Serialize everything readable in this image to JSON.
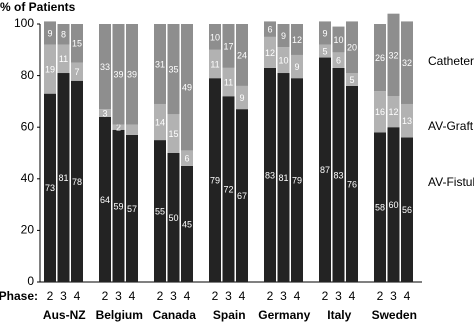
{
  "chart_data": {
    "type": "stacked-bar",
    "title": "% of Patients",
    "x_label": "Phase:",
    "groups": [
      "Aus-NZ",
      "Belgium",
      "Canada",
      "Spain",
      "Germany",
      "Italy",
      "Sweden"
    ],
    "categories": [
      "2",
      "3",
      "4",
      "2",
      "3",
      "4",
      "2",
      "3",
      "4",
      "2",
      "3",
      "4",
      "2",
      "3",
      "4",
      "2",
      "3",
      "4",
      "2",
      "3",
      "4"
    ],
    "series": [
      {
        "name": "AV-Fistula",
        "color": "#232323",
        "values": [
          73,
          81,
          78,
          64,
          59,
          57,
          55,
          50,
          45,
          79,
          72,
          67,
          83,
          81,
          79,
          87,
          83,
          76,
          58,
          60,
          56
        ]
      },
      {
        "name": "AV-Graft",
        "color": "#b2b2b2",
        "values": [
          19,
          11,
          7,
          3,
          2,
          4,
          14,
          15,
          6,
          11,
          11,
          9,
          12,
          10,
          9,
          5,
          6,
          5,
          16,
          12,
          13
        ],
        "value_labels": [
          19,
          11,
          7,
          3,
          2,
          null,
          14,
          15,
          6,
          11,
          11,
          9,
          12,
          10,
          9,
          5,
          6,
          5,
          16,
          12,
          13
        ]
      },
      {
        "name": "Catheter",
        "color": "#8e8e8e",
        "values": [
          9,
          8,
          15,
          33,
          39,
          39,
          31,
          35,
          49,
          10,
          17,
          24,
          6,
          9,
          12,
          9,
          10,
          20,
          26,
          32,
          32
        ]
      }
    ],
    "ylim": [
      0,
      100
    ],
    "yticks": [
      0,
      20,
      40,
      60,
      80,
      100
    ]
  }
}
